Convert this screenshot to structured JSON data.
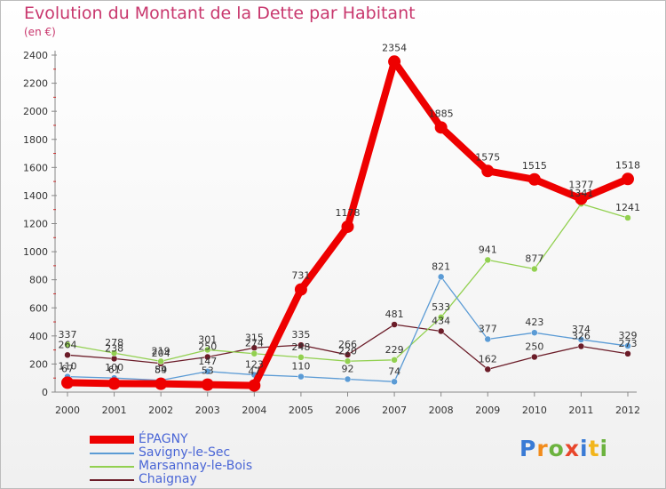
{
  "title": "Evolution du Montant de la Dette par Habitant",
  "subtitle": "(en €)",
  "logo": "Proxiti",
  "chart_data": {
    "type": "line",
    "x": [
      2000,
      2001,
      2002,
      2003,
      2004,
      2005,
      2006,
      2007,
      2008,
      2009,
      2010,
      2011,
      2012
    ],
    "ylim": [
      0,
      2400
    ],
    "yticks": [
      0,
      200,
      400,
      600,
      800,
      1000,
      1200,
      1400,
      1600,
      1800,
      2000,
      2200,
      2400
    ],
    "grid": false,
    "legend_position": "bottom-left",
    "series": [
      {
        "name": "ÉPAGNY",
        "color": "#ee0000",
        "values": [
          67,
          61,
          59,
          53,
          47,
          731,
          1178,
          2354,
          1885,
          1575,
          1515,
          1377,
          1518
        ]
      },
      {
        "name": "Savigny-le-Sec",
        "color": "#5b9bd5",
        "values": [
          110,
          100,
          84,
          147,
          123,
          110,
          92,
          74,
          821,
          377,
          423,
          374,
          329
        ]
      },
      {
        "name": "Marsannay-le-Bois",
        "color": "#92d050",
        "values": [
          337,
          278,
          219,
          301,
          274,
          248,
          220,
          229,
          533,
          941,
          877,
          1341,
          1241
        ]
      },
      {
        "name": "Chaignay",
        "color": "#6b1c28",
        "values": [
          264,
          238,
          204,
          250,
          315,
          335,
          266,
          481,
          434,
          162,
          250,
          326,
          273
        ]
      }
    ]
  }
}
